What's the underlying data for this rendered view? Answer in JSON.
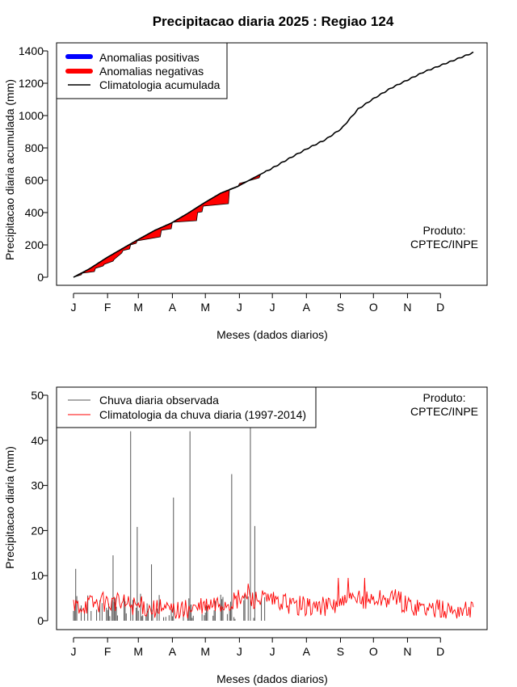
{
  "title": "Precipitacao diaria 2025 : Regiao 124",
  "colors": {
    "positive": "#0000ff",
    "negative": "#ff0000",
    "climatology": "#000000",
    "observed": "#555555",
    "clim_daily": "#ff0000"
  },
  "chart_data": [
    {
      "type": "area",
      "xlabel": "Meses (dados diarios)",
      "ylabel": "Precipitacao diaria acumulada (mm)",
      "ylim": [
        0,
        1400
      ],
      "yticks": [
        0,
        200,
        400,
        600,
        800,
        1000,
        1200,
        1400
      ],
      "month_labels": [
        "J",
        "F",
        "M",
        "A",
        "M",
        "J",
        "J",
        "A",
        "S",
        "O",
        "N",
        "D"
      ],
      "legend": {
        "position": "top-left",
        "items": [
          "Anomalias positivas",
          "Anomalias negativas",
          "Climatologia acumulada"
        ]
      },
      "annotation": [
        "Produto:",
        "CPTEC/INPE"
      ],
      "climatology_accumulated": {
        "x_day": [
          1,
          15,
          31,
          45,
          59,
          75,
          90,
          105,
          120,
          135,
          150,
          165,
          175,
          182,
          200,
          215,
          230,
          245,
          260,
          273,
          290,
          305,
          320,
          335,
          350,
          365
        ],
        "y": [
          0,
          50,
          120,
          175,
          230,
          290,
          335,
          395,
          460,
          520,
          560,
          615,
          650,
          675,
          745,
          800,
          850,
          920,
          1040,
          1100,
          1170,
          1220,
          1270,
          1310,
          1350,
          1390
        ]
      },
      "observed_accumulated": {
        "x_day": [
          1,
          8,
          9,
          20,
          21,
          28,
          29,
          37,
          38,
          45,
          46,
          52,
          53,
          58,
          59,
          80,
          81,
          90,
          91,
          113,
          114,
          118,
          119,
          142,
          143,
          151,
          152,
          170,
          171
        ],
        "y": [
          0,
          15,
          25,
          35,
          55,
          70,
          80,
          100,
          110,
          150,
          165,
          175,
          200,
          210,
          225,
          250,
          290,
          300,
          340,
          350,
          400,
          405,
          440,
          455,
          545,
          565,
          580,
          615,
          630
        ]
      },
      "observed_daily_peaks": {
        "day": [
          3,
          37,
          53,
          59,
          72,
          92,
          107,
          145,
          162,
          166
        ],
        "value": [
          11.5,
          14.5,
          42,
          20.8,
          12.5,
          27.3,
          42,
          32.5,
          43,
          21
        ]
      }
    },
    {
      "type": "line",
      "xlabel": "Meses (dados diarios)",
      "ylabel": "Precipitacao diaria (mm)",
      "ylim": [
        0,
        50
      ],
      "yticks": [
        0,
        10,
        20,
        30,
        40,
        50
      ],
      "month_labels": [
        "J",
        "F",
        "M",
        "A",
        "M",
        "J",
        "J",
        "A",
        "S",
        "O",
        "N",
        "D"
      ],
      "legend": {
        "position": "top-left",
        "items": [
          "Chuva diaria observada",
          "Climatologia da chuva diaria (1997-2014)"
        ]
      },
      "annotation": [
        "Produto:",
        "CPTEC/INPE"
      ],
      "observed_days": 175,
      "climatology_daily_range": [
        0.5,
        10
      ]
    }
  ]
}
